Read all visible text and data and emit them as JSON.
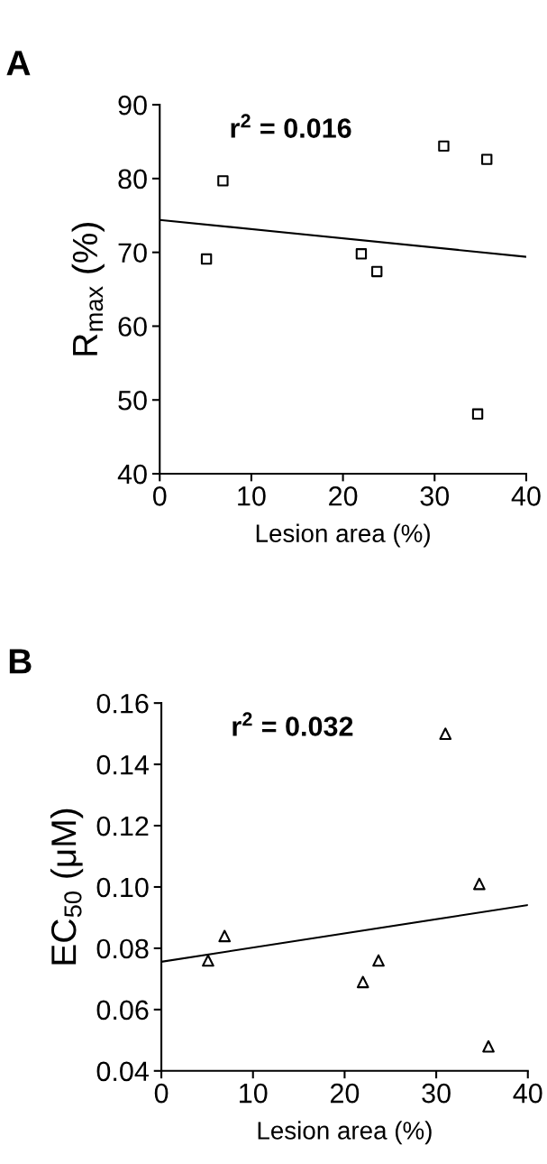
{
  "chart_data": [
    {
      "type": "scatter",
      "title": "A",
      "xlabel": "Lesion area (%)",
      "ylabel": "R$_{max}$ (%)",
      "xlim": [
        0,
        40
      ],
      "xticks": [
        0,
        10,
        20,
        30,
        40
      ],
      "ylim": [
        40,
        90
      ],
      "yticks": [
        40,
        50,
        60,
        70,
        80,
        90
      ],
      "annotations": [
        "r$^{2}$ = 0.016"
      ],
      "grid": false,
      "legend": false,
      "series": [
        {
          "marker": "square",
          "color": "#000000",
          "x": [
            5.1,
            6.9,
            22.0,
            23.7,
            31.0,
            35.7,
            34.7
          ],
          "values": [
            69.1,
            79.7,
            69.8,
            67.4,
            84.4,
            82.6,
            48.1
          ]
        },
        {
          "type": "line",
          "marker": "none",
          "line_style": "solid",
          "color": "#000000",
          "x": [
            0,
            40
          ],
          "values": [
            74.4,
            69.4
          ]
        }
      ]
    },
    {
      "type": "scatter",
      "title": "B",
      "xlabel": "Lesion area (%)",
      "ylabel": "EC$_{50}$ (μM)",
      "xlim": [
        0,
        40
      ],
      "xticks": [
        0,
        10,
        20,
        30,
        40
      ],
      "ylim": [
        0.04,
        0.16
      ],
      "yticks": [
        {
          "value": 0.04,
          "label": "0.04"
        },
        {
          "value": 0.06,
          "label": "0.06"
        },
        {
          "value": 0.08,
          "label": "0.08"
        },
        {
          "value": 0.1,
          "label": "0.10"
        },
        {
          "value": 0.12,
          "label": "0.12"
        },
        {
          "value": 0.14,
          "label": "0.14"
        },
        {
          "value": 0.16,
          "label": "0.16"
        }
      ],
      "annotations": [
        "r$^{2}$ = 0.032"
      ],
      "grid": false,
      "legend": false,
      "series": [
        {
          "marker": "triangle",
          "color": "#000000",
          "x": [
            5.1,
            6.9,
            22.0,
            23.7,
            31.0,
            34.7,
            35.7
          ],
          "values": [
            0.076,
            0.084,
            0.069,
            0.076,
            0.15,
            0.101,
            0.048
          ]
        },
        {
          "type": "line",
          "marker": "none",
          "line_style": "solid",
          "color": "#000000",
          "x": [
            0,
            40
          ],
          "values": [
            0.0756,
            0.0941
          ]
        }
      ]
    }
  ]
}
